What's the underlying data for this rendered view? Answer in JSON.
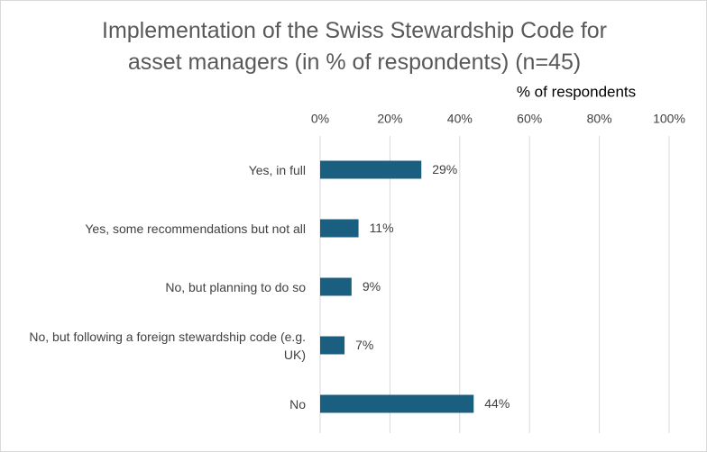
{
  "chart_data": {
    "type": "bar",
    "orientation": "horizontal",
    "title": "Implementation of the Swiss Stewardship Code for asset managers (in % of respondents) (n=45)",
    "x_label": "% of respondents",
    "categories": [
      "Yes, in full",
      "Yes, some recommendations but not all",
      "No, but planning to do so",
      "No, but following a foreign stewardship code (e.g. UK)",
      "No"
    ],
    "values": [
      29,
      11,
      9,
      7,
      44
    ],
    "value_labels": [
      "29%",
      "11%",
      "9%",
      "7%",
      "44%"
    ],
    "color": "#1b5f80",
    "xlim": [
      0,
      100
    ],
    "xticks": [
      {
        "value": 0,
        "label": "0%"
      },
      {
        "value": 20,
        "label": "20%"
      },
      {
        "value": 40,
        "label": "40%"
      },
      {
        "value": 60,
        "label": "60%"
      },
      {
        "value": 80,
        "label": "80%"
      },
      {
        "value": 100,
        "label": "100%"
      }
    ],
    "grid": true
  }
}
